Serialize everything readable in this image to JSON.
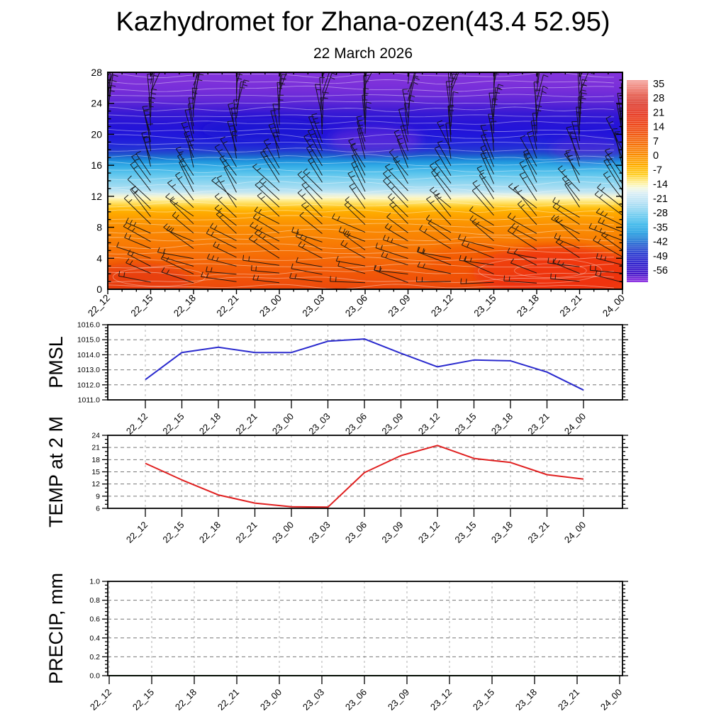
{
  "header": {
    "title": "Kazhydromet for Zhana-ozen(43.4 52.95)",
    "subtitle": "22 March 2026"
  },
  "time_labels": [
    "22_12",
    "22_15",
    "22_18",
    "22_21",
    "23_00",
    "23_03",
    "23_06",
    "23_09",
    "23_12",
    "23_15",
    "23_18",
    "23_21",
    "24_00"
  ],
  "chart_data": [
    {
      "type": "heatmap",
      "name": "upper-air-temperature-profile",
      "categories": [
        "22_12",
        "22_15",
        "22_18",
        "22_21",
        "23_00",
        "23_03",
        "23_06",
        "23_09",
        "23_12",
        "23_15",
        "23_18",
        "23_21",
        "24_00"
      ],
      "ylim": [
        0,
        28
      ],
      "yticks": [
        0,
        4,
        8,
        12,
        16,
        20,
        24,
        28
      ],
      "grid": false,
      "wind_barbs": {
        "columns": 13,
        "rows": 26,
        "color": "#111111"
      },
      "contour_lines": {
        "count": 32,
        "color": "#ffffff",
        "opacity": 0.42
      },
      "gradient_stops": [
        {
          "offset": 0,
          "color": "#8334dc"
        },
        {
          "offset": 5,
          "color": "#7d31da"
        },
        {
          "offset": 9,
          "color": "#742dd9"
        },
        {
          "offset": 13,
          "color": "#6128d7"
        },
        {
          "offset": 16,
          "color": "#4c20d5"
        },
        {
          "offset": 19,
          "color": "#3719d4"
        },
        {
          "offset": 23,
          "color": "#2814d6"
        },
        {
          "offset": 27,
          "color": "#2214d9"
        },
        {
          "offset": 30,
          "color": "#2019da"
        },
        {
          "offset": 33,
          "color": "#2226da"
        },
        {
          "offset": 35.7,
          "color": "#2336d4"
        },
        {
          "offset": 37.5,
          "color": "#2050cd"
        },
        {
          "offset": 39.3,
          "color": "#1b74d3"
        },
        {
          "offset": 41,
          "color": "#1f93dd"
        },
        {
          "offset": 42.9,
          "color": "#30a9e5"
        },
        {
          "offset": 46.4,
          "color": "#58c3ec"
        },
        {
          "offset": 50,
          "color": "#86d3f0"
        },
        {
          "offset": 53.6,
          "color": "#abdef2"
        },
        {
          "offset": 55.4,
          "color": "#c8e8f1"
        },
        {
          "offset": 56.8,
          "color": "#ecf3dd"
        },
        {
          "offset": 58,
          "color": "#fdf6bf"
        },
        {
          "offset": 59.5,
          "color": "#ffe87e"
        },
        {
          "offset": 61,
          "color": "#ffd747"
        },
        {
          "offset": 62.5,
          "color": "#ffc113"
        },
        {
          "offset": 64.3,
          "color": "#ffad00"
        },
        {
          "offset": 68,
          "color": "#fc9a01"
        },
        {
          "offset": 71.4,
          "color": "#fa8d02"
        },
        {
          "offset": 78.6,
          "color": "#f87c04"
        },
        {
          "offset": 85.7,
          "color": "#f56a07"
        },
        {
          "offset": 93,
          "color": "#f15708"
        },
        {
          "offset": 100,
          "color": "#ec480c"
        }
      ],
      "anomalies": [
        {
          "cx": 0.06,
          "h": 1.0,
          "rx": 0.1,
          "rh": 2.4,
          "color": "#e63a0e",
          "opacity": 0.75
        },
        {
          "cx": 0.87,
          "h": 2.2,
          "rx": 0.16,
          "rh": 3.4,
          "color": "#ee2c10",
          "opacity": 0.8
        },
        {
          "cx": 0.72,
          "h": 3.5,
          "rx": 0.1,
          "rh": 2.2,
          "color": "#f04a0c",
          "opacity": 0.5
        },
        {
          "cx": 0.52,
          "h": 19.2,
          "rx": 0.09,
          "rh": 1.7,
          "color": "#7a2ed8",
          "opacity": 0.55
        },
        {
          "cx": 0.3,
          "h": 20.6,
          "rx": 0.12,
          "rh": 1.5,
          "color": "#1c10cf",
          "opacity": 0.5
        },
        {
          "cx": 0.93,
          "h": 18.0,
          "rx": 0.07,
          "rh": 1.5,
          "color": "#6c2ad6",
          "opacity": 0.4
        }
      ],
      "colorbar": {
        "ticks": [
          35,
          28,
          21,
          14,
          7,
          0,
          -7,
          -14,
          -21,
          -28,
          -35,
          -42,
          -49,
          -56
        ],
        "gradient_stops": [
          {
            "offset": 0,
            "color": "#f4a29b"
          },
          {
            "offset": 3.5,
            "color": "#ef8177"
          },
          {
            "offset": 7,
            "color": "#e55a4b"
          },
          {
            "offset": 10.7,
            "color": "#dc4133"
          },
          {
            "offset": 14,
            "color": "#e13524"
          },
          {
            "offset": 17.9,
            "color": "#e83519"
          },
          {
            "offset": 21,
            "color": "#ec3d12"
          },
          {
            "offset": 25,
            "color": "#ef4c0e"
          },
          {
            "offset": 28.5,
            "color": "#f25e0a"
          },
          {
            "offset": 32.1,
            "color": "#f67206"
          },
          {
            "offset": 35.5,
            "color": "#f98403"
          },
          {
            "offset": 39.3,
            "color": "#fd9c01"
          },
          {
            "offset": 43,
            "color": "#ffb300"
          },
          {
            "offset": 46.4,
            "color": "#ffcb1e"
          },
          {
            "offset": 49,
            "color": "#ffe266"
          },
          {
            "offset": 51.5,
            "color": "#fdf4ad"
          },
          {
            "offset": 53.6,
            "color": "#f2f8e2"
          },
          {
            "offset": 56,
            "color": "#d9eef5"
          },
          {
            "offset": 60.7,
            "color": "#b2e0f4"
          },
          {
            "offset": 64,
            "color": "#8ed5f1"
          },
          {
            "offset": 67.9,
            "color": "#5ec6ee"
          },
          {
            "offset": 71.5,
            "color": "#35b5ea"
          },
          {
            "offset": 75,
            "color": "#21a0e2"
          },
          {
            "offset": 78.5,
            "color": "#1b7fd6"
          },
          {
            "offset": 82.1,
            "color": "#2256cf"
          },
          {
            "offset": 85.5,
            "color": "#2338cf"
          },
          {
            "offset": 89.3,
            "color": "#2722cd"
          },
          {
            "offset": 92.5,
            "color": "#2f17ca"
          },
          {
            "offset": 96.4,
            "color": "#4813c8"
          },
          {
            "offset": 98,
            "color": "#6e1fd6"
          },
          {
            "offset": 100,
            "color": "#8b2be2"
          }
        ]
      }
    },
    {
      "type": "line",
      "name": "pmsl",
      "ylabel": "PMSL",
      "categories": [
        "22_12",
        "22_15",
        "22_18",
        "22_21",
        "23_00",
        "23_03",
        "23_06",
        "23_09",
        "23_12",
        "23_15",
        "23_18",
        "23_21",
        "24_00"
      ],
      "values": [
        1012.35,
        1014.15,
        1014.5,
        1014.15,
        1014.15,
        1014.9,
        1015.05,
        1014.1,
        1013.2,
        1013.65,
        1013.6,
        1012.85,
        1011.65
      ],
      "ylim": [
        1011,
        1016
      ],
      "yticks": [
        1011,
        1012,
        1013,
        1014,
        1015,
        1016
      ],
      "ytick_labels": [
        "1011.0",
        "1012.0",
        "1013.0",
        "1014.0",
        "1015.0",
        "1016.0"
      ],
      "grid_ticks": [
        1011,
        1012,
        1013,
        1014,
        1015,
        1016
      ],
      "minor_per_major": 5,
      "color": "#2a2ace"
    },
    {
      "type": "line",
      "name": "temp-2m",
      "ylabel": "TEMP at 2 M",
      "categories": [
        "22_12",
        "22_15",
        "22_18",
        "22_21",
        "23_00",
        "23_03",
        "23_06",
        "23_09",
        "23_12",
        "23_15",
        "23_18",
        "23_21",
        "24_00"
      ],
      "values": [
        17.1,
        13.0,
        9.3,
        7.3,
        6.4,
        6.3,
        14.8,
        19.0,
        21.5,
        18.3,
        17.3,
        14.3,
        13.2
      ],
      "ylim": [
        6,
        24
      ],
      "yticks": [
        6,
        9,
        12,
        15,
        18,
        21,
        24
      ],
      "ytick_labels": [
        "6",
        "9",
        "12",
        "15",
        "18",
        "21",
        "24"
      ],
      "grid_ticks": [
        9,
        12,
        15,
        18,
        21
      ],
      "minor_per_major": 3,
      "color": "#e02020"
    },
    {
      "type": "line",
      "name": "precip",
      "ylabel": "PRECIP, mm",
      "categories": [
        "22_12",
        "22_15",
        "22_18",
        "22_21",
        "23_00",
        "23_03",
        "23_06",
        "23_09",
        "23_12",
        "23_15",
        "23_18",
        "23_21",
        "24_00"
      ],
      "values": [
        0,
        0,
        0,
        0,
        0,
        0,
        0,
        0,
        0,
        0,
        0,
        0,
        0
      ],
      "ylim": [
        0,
        1
      ],
      "yticks": [
        0,
        0.2,
        0.4,
        0.6,
        0.8,
        1.0
      ],
      "ytick_labels": [
        "0.0",
        "0.2",
        "0.4",
        "0.6",
        "0.8",
        "1.0"
      ],
      "grid_ticks": [
        0.2,
        0.4,
        0.6,
        0.8,
        1.0
      ],
      "minor_per_major": 5,
      "color": "#1a7a1a"
    }
  ]
}
